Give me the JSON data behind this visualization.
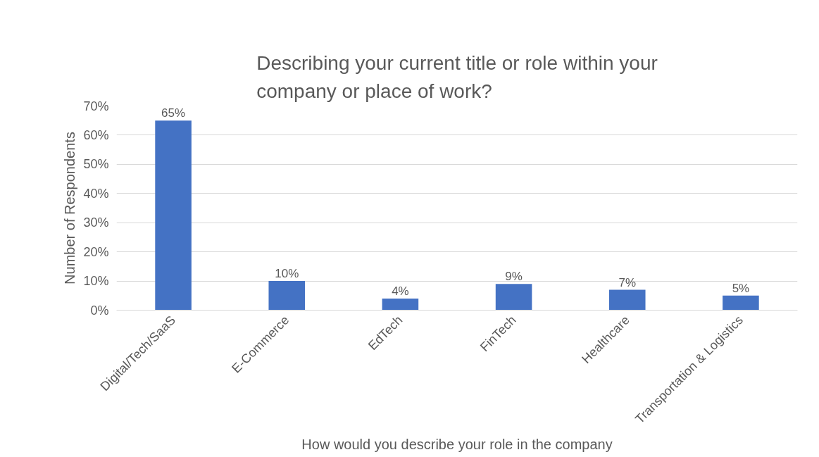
{
  "chart_data": {
    "type": "bar",
    "title": "Describing your current title or role within your\ncompany or place of work?",
    "xlabel": "How would you describe your role in the company",
    "ylabel": "Number of Respondents",
    "categories": [
      "Digital/Tech/SaaS",
      "E-Commerce",
      "EdTech",
      "FinTech",
      "Healthcare",
      "Transportation & Logistics"
    ],
    "values": [
      65,
      10,
      4,
      9,
      7,
      5
    ],
    "color": "#4472c4",
    "value_labels": [
      "65%",
      "10%",
      "4%",
      "9%",
      "7%",
      "5%"
    ],
    "ylim": [
      0,
      70
    ],
    "yticks": [
      {
        "value": 0,
        "label": "0%"
      },
      {
        "value": 10,
        "label": "10%"
      },
      {
        "value": 20,
        "label": "20%"
      },
      {
        "value": 30,
        "label": "30%"
      },
      {
        "value": 40,
        "label": "40%"
      },
      {
        "value": 50,
        "label": "50%"
      },
      {
        "value": 60,
        "label": "60%"
      },
      {
        "value": 70,
        "label": "70%"
      }
    ],
    "grid": "y"
  }
}
